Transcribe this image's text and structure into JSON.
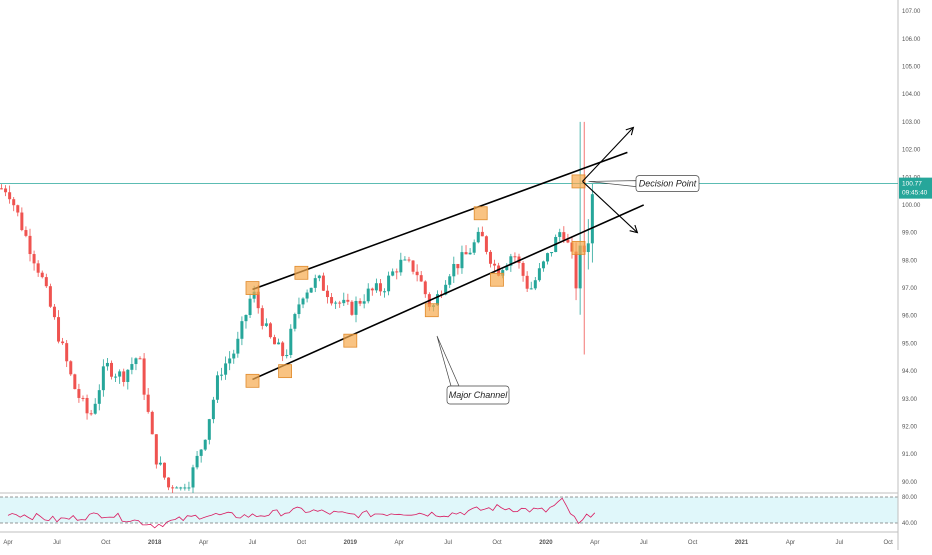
{
  "chart_data": [
    {
      "type": "candlestick",
      "x": [
        "2017-04",
        "2017-05",
        "2017-06",
        "2017-07",
        "2017-08",
        "2017-09",
        "2017-10",
        "2017-11",
        "2017-12",
        "2018-01",
        "2018-02",
        "2018-03",
        "2018-04",
        "2018-05",
        "2018-06",
        "2018-07",
        "2018-08",
        "2018-09",
        "2018-10",
        "2018-11",
        "2018-12",
        "2019-01",
        "2019-02",
        "2019-03",
        "2019-04",
        "2019-05",
        "2019-06",
        "2019-07",
        "2019-08",
        "2019-09",
        "2019-10",
        "2019-11",
        "2019-12",
        "2020-01",
        "2020-02",
        "2020-03",
        "2020-04"
      ],
      "y": [
        100.6,
        99.0,
        97.5,
        95.5,
        93.5,
        92.3,
        94.2,
        93.8,
        94.6,
        91.0,
        89.6,
        89.8,
        91.5,
        94.0,
        94.8,
        96.9,
        95.2,
        94.5,
        96.8,
        97.3,
        96.6,
        96.2,
        96.8,
        97.0,
        97.9,
        97.7,
        96.2,
        97.6,
        98.1,
        98.9,
        97.6,
        98.3,
        96.9,
        98.0,
        99.2,
        97.3,
        100.7
      ],
      "xlim": [
        "2017-04",
        "2021-11"
      ],
      "ylim": [
        89.6,
        107.4
      ],
      "y_ticks": [
        "107.00",
        "106.00",
        "105.00",
        "104.00",
        "103.00",
        "102.00",
        "101.00",
        "100.00",
        "99.00",
        "98.00",
        "97.00",
        "96.00",
        "95.00",
        "94.00",
        "93.00",
        "92.00",
        "91.00",
        "90.00"
      ],
      "x_ticks": [
        "Apr",
        "Jul",
        "Oct",
        "2018",
        "Apr",
        "Jul",
        "Oct",
        "2019",
        "Apr",
        "Jul",
        "Oct",
        "2020",
        "Apr",
        "Jul",
        "Oct",
        "2021",
        "Apr",
        "Jul",
        "Oct"
      ],
      "current_price": {
        "value": 100.77,
        "label": "100.77",
        "time": "09:45:40"
      },
      "annotations": [
        {
          "text": "Decision Point"
        },
        {
          "text": "Major Channel"
        }
      ],
      "channel": {
        "upper": [
          {
            "x": "2018-07",
            "y": 96.95
          },
          {
            "x": "2020-06",
            "y": 101.9
          }
        ],
        "lower": [
          {
            "x": "2018-07",
            "y": 93.7
          },
          {
            "x": "2020-07",
            "y": 100.0
          }
        ]
      },
      "touch_points": [
        {
          "x": "2018-07",
          "y": 97.0
        },
        {
          "x": "2018-07",
          "y": 93.65
        },
        {
          "x": "2018-09",
          "y": 94.0
        },
        {
          "x": "2018-10",
          "y": 97.55
        },
        {
          "x": "2019-01",
          "y": 95.1
        },
        {
          "x": "2019-06",
          "y": 96.2
        },
        {
          "x": "2019-09",
          "y": 99.7
        },
        {
          "x": "2019-10",
          "y": 97.3
        },
        {
          "x": "2020-03",
          "y": 100.85
        },
        {
          "x": "2020-03",
          "y": 98.45
        }
      ],
      "colors": {
        "up": "#26a69a",
        "down": "#ef5350",
        "price_line": "#26a69a",
        "channel": "#000000",
        "highlight": "#f7a94d",
        "rsi_line": "#d81b60",
        "rsi_band": "#e0f7fa"
      }
    },
    {
      "type": "line",
      "x": [
        "2017-04",
        "2017-07",
        "2017-10",
        "2018-01",
        "2018-04",
        "2018-07",
        "2018-10",
        "2019-01",
        "2019-04",
        "2019-07",
        "2019-10",
        "2020-01",
        "2020-02",
        "2020-03",
        "2020-04"
      ],
      "y": [
        55,
        40,
        52,
        30,
        50,
        48,
        60,
        50,
        55,
        52,
        65,
        58,
        78,
        30,
        60
      ],
      "ylim": [
        20,
        90
      ],
      "y_ticks": [
        "80.00",
        "40.00"
      ],
      "reference_lines": [
        80,
        40
      ]
    }
  ]
}
